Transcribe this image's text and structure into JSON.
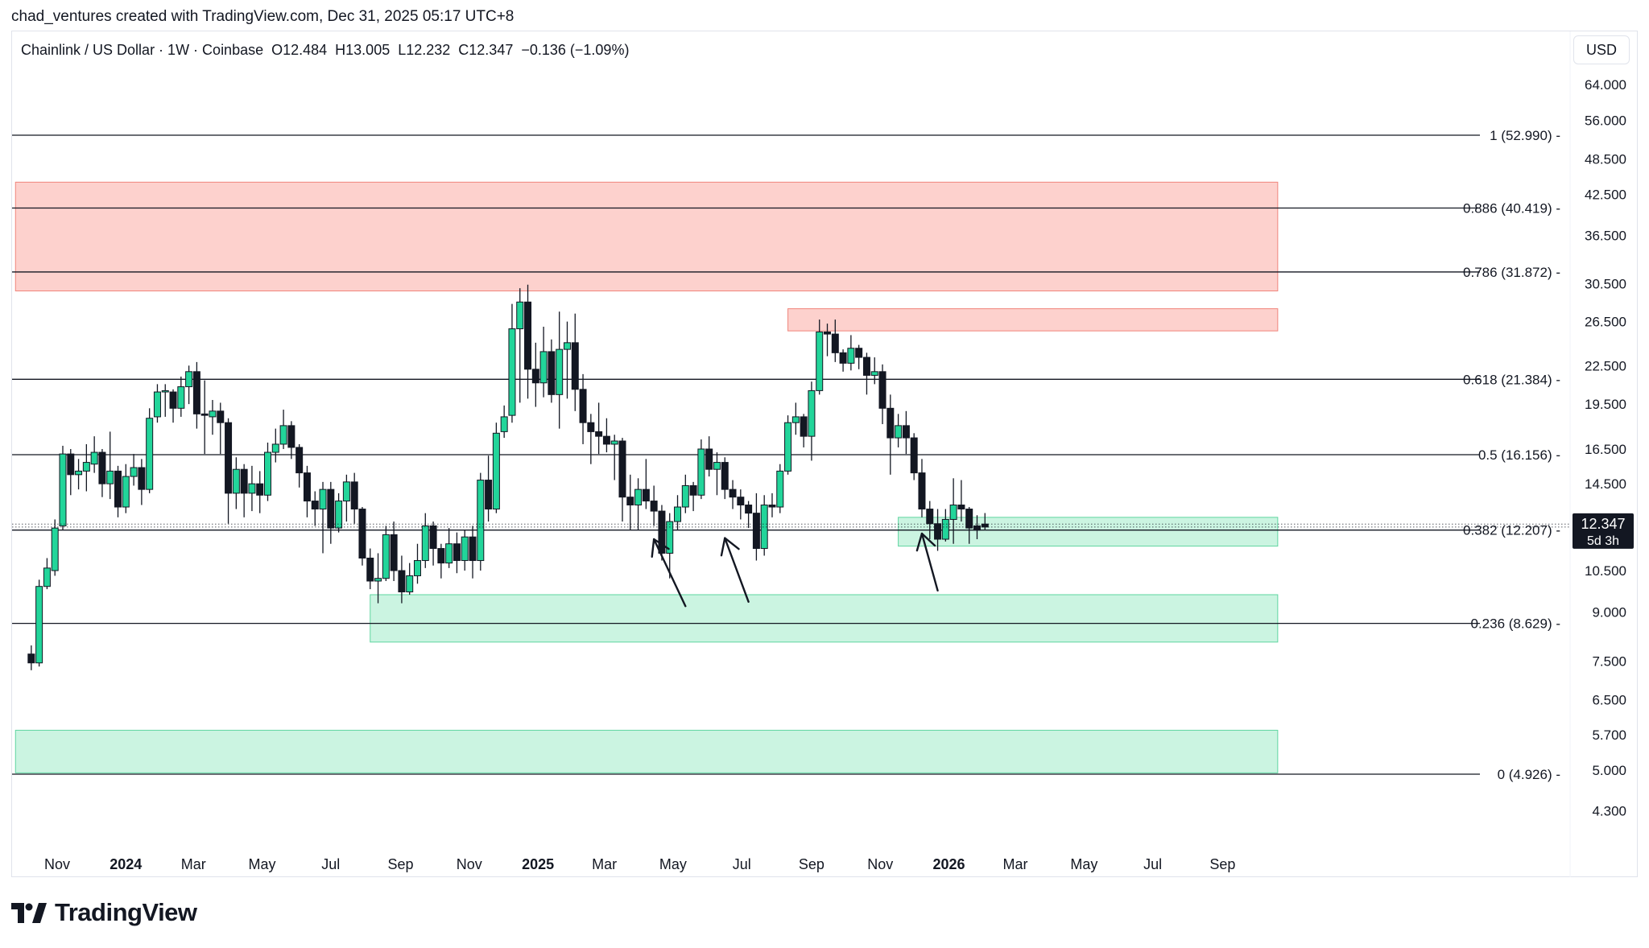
{
  "header": {
    "credit": "chad_ventures created with TradingView.com, Dec 31, 2025 05:17 UTC+8",
    "legend": "Chainlink / US Dollar · 1W · Coinbase  O12.484  H13.005  L12.232  C12.347  −0.136 (−1.09%)",
    "currency": "USD"
  },
  "brand": {
    "name": "TradingView"
  },
  "chart_data": {
    "type": "candlestick",
    "symbol": "Chainlink / US Dollar",
    "interval": "1W",
    "exchange": "Coinbase",
    "scale": "log",
    "ohlc_last": {
      "open": 12.484,
      "high": 13.005,
      "low": 12.232,
      "close": 12.347,
      "change": -0.136,
      "change_pct": -1.09
    },
    "last_price_label": "12.347",
    "countdown_label": "5d 3h",
    "y_ticks": [
      "64.000",
      "56.000",
      "48.500",
      "42.500",
      "36.500",
      "30.500",
      "26.500",
      "22.500",
      "19.500",
      "16.500",
      "14.500",
      "10.500",
      "9.000",
      "7.500",
      "6.500",
      "5.700",
      "5.000",
      "4.300"
    ],
    "x_ticks": [
      {
        "label": "Nov",
        "date": "2023-11-01",
        "bold": false
      },
      {
        "label": "2024",
        "date": "2024-01-01",
        "bold": true
      },
      {
        "label": "Mar",
        "date": "2024-03-01",
        "bold": false
      },
      {
        "label": "May",
        "date": "2024-05-01",
        "bold": false
      },
      {
        "label": "Jul",
        "date": "2024-07-01",
        "bold": false
      },
      {
        "label": "Sep",
        "date": "2024-09-01",
        "bold": false
      },
      {
        "label": "Nov",
        "date": "2024-11-01",
        "bold": false
      },
      {
        "label": "2025",
        "date": "2025-01-01",
        "bold": true
      },
      {
        "label": "Mar",
        "date": "2025-03-01",
        "bold": false
      },
      {
        "label": "May",
        "date": "2025-05-01",
        "bold": false
      },
      {
        "label": "Jul",
        "date": "2025-07-01",
        "bold": false
      },
      {
        "label": "Sep",
        "date": "2025-09-01",
        "bold": false
      },
      {
        "label": "Nov",
        "date": "2025-11-01",
        "bold": false
      },
      {
        "label": "2026",
        "date": "2026-01-01",
        "bold": true
      },
      {
        "label": "Mar",
        "date": "2026-03-01",
        "bold": false
      },
      {
        "label": "May",
        "date": "2026-05-01",
        "bold": false
      },
      {
        "label": "Jul",
        "date": "2026-07-01",
        "bold": false
      },
      {
        "label": "Sep",
        "date": "2026-09-01",
        "bold": false
      }
    ],
    "fib_levels": [
      {
        "ratio": "1",
        "value": 52.99,
        "label": "1 (52.990)"
      },
      {
        "ratio": "0.886",
        "value": 40.419,
        "label": "0.886 (40.419)"
      },
      {
        "ratio": "0.786",
        "value": 31.872,
        "label": "0.786 (31.872)"
      },
      {
        "ratio": "0.618",
        "value": 21.384,
        "label": "0.618 (21.384)"
      },
      {
        "ratio": "0.5",
        "value": 16.156,
        "label": "0.5 (16.156)"
      },
      {
        "ratio": "0.382",
        "value": 12.207,
        "label": "0.382 (12.207)"
      },
      {
        "ratio": "0.236",
        "value": 8.629,
        "label": "0.236 (8.629)"
      },
      {
        "ratio": "0",
        "value": 4.926,
        "label": "0 (4.926)"
      }
    ],
    "zones": [
      {
        "kind": "resistance",
        "from": "2023-09-25",
        "to": "2026-10-20",
        "low": 29.7,
        "high": 44.5
      },
      {
        "kind": "resistance",
        "from": "2025-08-11",
        "to": "2026-10-20",
        "low": 25.6,
        "high": 27.8
      },
      {
        "kind": "support",
        "from": "2025-11-17",
        "to": "2026-10-20",
        "low": 11.5,
        "high": 12.8
      },
      {
        "kind": "support",
        "from": "2024-08-05",
        "to": "2026-10-20",
        "low": 8.05,
        "high": 9.6
      },
      {
        "kind": "support",
        "from": "2023-09-25",
        "to": "2026-10-20",
        "low": 4.95,
        "high": 5.8
      }
    ],
    "arrows": [
      {
        "from": {
          "date": "2025-05-12",
          "price": 9.2
        },
        "to": {
          "date": "2025-04-14",
          "price": 11.8
        }
      },
      {
        "from": {
          "date": "2025-07-07",
          "price": 9.35
        },
        "to": {
          "date": "2025-06-16",
          "price": 11.85
        }
      },
      {
        "from": {
          "date": "2025-12-22",
          "price": 9.75
        },
        "to": {
          "date": "2025-12-08",
          "price": 12.05
        }
      }
    ],
    "candles_start": "2023-10-09",
    "candles": [
      [
        7.7,
        7.45,
        7.95,
        7.25
      ],
      [
        7.45,
        9.9,
        10.15,
        7.35
      ],
      [
        9.9,
        10.6,
        11.0,
        9.8
      ],
      [
        10.5,
        12.3,
        12.7,
        10.3
      ],
      [
        12.4,
        16.2,
        16.7,
        12.2
      ],
      [
        16.2,
        15.0,
        16.5,
        13.9
      ],
      [
        15.0,
        15.2,
        15.9,
        14.2
      ],
      [
        15.2,
        15.7,
        16.8,
        14.1
      ],
      [
        15.6,
        16.3,
        17.3,
        15.1
      ],
      [
        16.3,
        14.5,
        16.5,
        13.8
      ],
      [
        14.5,
        15.2,
        17.6,
        13.7
      ],
      [
        15.2,
        13.3,
        15.5,
        12.8
      ],
      [
        13.3,
        14.9,
        15.6,
        13.0
      ],
      [
        14.9,
        15.4,
        16.2,
        14.4
      ],
      [
        15.4,
        14.2,
        15.9,
        13.4
      ],
      [
        14.2,
        18.5,
        19.2,
        14.0
      ],
      [
        18.6,
        20.4,
        21.0,
        18.2
      ],
      [
        20.4,
        20.5,
        21.0,
        18.6
      ],
      [
        20.4,
        19.2,
        20.6,
        18.2
      ],
      [
        19.2,
        20.8,
        21.6,
        18.6
      ],
      [
        20.8,
        22.0,
        22.5,
        19.5
      ],
      [
        22.0,
        18.8,
        22.8,
        17.8
      ],
      [
        18.8,
        18.7,
        21.3,
        16.2
      ],
      [
        18.6,
        19.0,
        19.8,
        17.4
      ],
      [
        19.0,
        18.2,
        19.6,
        16.2
      ],
      [
        18.2,
        14.0,
        18.5,
        12.5
      ],
      [
        14.0,
        15.3,
        16.0,
        13.2
      ],
      [
        15.3,
        14.0,
        15.6,
        12.8
      ],
      [
        14.0,
        14.5,
        15.5,
        13.1
      ],
      [
        14.5,
        13.9,
        15.2,
        13.0
      ],
      [
        13.9,
        16.3,
        16.9,
        13.6
      ],
      [
        16.3,
        16.8,
        17.8,
        15.7
      ],
      [
        16.8,
        18.0,
        19.1,
        16.5
      ],
      [
        18.0,
        16.6,
        18.3,
        15.9
      ],
      [
        16.6,
        15.1,
        16.8,
        14.3
      ],
      [
        15.1,
        13.6,
        15.5,
        12.8
      ],
      [
        13.6,
        13.2,
        14.1,
        12.4
      ],
      [
        13.2,
        14.2,
        14.6,
        11.2
      ],
      [
        14.2,
        12.3,
        14.6,
        11.6
      ],
      [
        12.3,
        13.6,
        14.0,
        12.1
      ],
      [
        13.6,
        14.6,
        15.0,
        12.6
      ],
      [
        14.6,
        13.2,
        15.1,
        12.5
      ],
      [
        13.2,
        11.0,
        13.3,
        10.7
      ],
      [
        11.0,
        10.1,
        11.4,
        9.8
      ],
      [
        10.1,
        10.2,
        11.2,
        9.3
      ],
      [
        10.2,
        12.0,
        12.4,
        10.1
      ],
      [
        12.0,
        10.5,
        12.6,
        10.1
      ],
      [
        10.5,
        9.7,
        11.1,
        9.3
      ],
      [
        9.7,
        10.3,
        10.8,
        9.6
      ],
      [
        10.3,
        10.9,
        11.6,
        10.0
      ],
      [
        10.9,
        12.4,
        13.0,
        10.6
      ],
      [
        12.4,
        11.4,
        12.6,
        10.7
      ],
      [
        11.4,
        10.8,
        11.6,
        10.2
      ],
      [
        10.8,
        11.6,
        12.3,
        10.6
      ],
      [
        11.6,
        10.9,
        12.1,
        10.4
      ],
      [
        10.9,
        11.9,
        12.2,
        10.5
      ],
      [
        11.9,
        10.9,
        12.4,
        10.2
      ],
      [
        10.9,
        14.7,
        15.1,
        10.5
      ],
      [
        14.7,
        13.2,
        16.1,
        12.6
      ],
      [
        13.2,
        17.5,
        18.2,
        13.0
      ],
      [
        17.6,
        18.6,
        19.4,
        17.2
      ],
      [
        18.7,
        25.8,
        28.3,
        18.2
      ],
      [
        25.8,
        28.5,
        30.0,
        19.6
      ],
      [
        28.5,
        22.2,
        30.4,
        19.9
      ],
      [
        22.2,
        21.1,
        24.5,
        19.3
      ],
      [
        21.1,
        23.7,
        26.0,
        20.0
      ],
      [
        23.7,
        20.2,
        24.8,
        19.6
      ],
      [
        20.2,
        23.9,
        27.5,
        17.8
      ],
      [
        23.9,
        24.5,
        26.5,
        19.9
      ],
      [
        24.5,
        20.6,
        27.3,
        19.0
      ],
      [
        20.6,
        18.2,
        21.8,
        16.8
      ],
      [
        18.2,
        17.6,
        18.8,
        15.6
      ],
      [
        17.6,
        17.3,
        19.6,
        16.2
      ],
      [
        17.3,
        16.8,
        18.5,
        16.3
      ],
      [
        16.8,
        17.0,
        17.4,
        14.7
      ],
      [
        17.0,
        13.8,
        17.2,
        12.6
      ],
      [
        13.8,
        13.4,
        15.0,
        12.2
      ],
      [
        13.4,
        14.2,
        14.8,
        12.2
      ],
      [
        14.2,
        13.6,
        15.9,
        13.2
      ],
      [
        13.6,
        13.1,
        14.4,
        12.4
      ],
      [
        13.1,
        11.2,
        13.4,
        10.9
      ],
      [
        11.2,
        12.6,
        13.0,
        10.2
      ],
      [
        12.6,
        13.3,
        13.9,
        12.2
      ],
      [
        13.3,
        14.4,
        15.0,
        13.0
      ],
      [
        14.4,
        13.9,
        14.6,
        13.1
      ],
      [
        13.9,
        16.5,
        17.1,
        13.7
      ],
      [
        16.5,
        15.3,
        17.3,
        14.9
      ],
      [
        15.3,
        15.7,
        16.3,
        13.9
      ],
      [
        15.7,
        14.2,
        16.0,
        13.7
      ],
      [
        14.2,
        13.8,
        14.7,
        13.2
      ],
      [
        13.8,
        13.4,
        14.2,
        12.7
      ],
      [
        13.4,
        13.0,
        13.6,
        12.3
      ],
      [
        13.0,
        11.4,
        14.0,
        10.9
      ],
      [
        11.4,
        13.4,
        13.9,
        11.1
      ],
      [
        13.4,
        13.3,
        14.0,
        12.8
      ],
      [
        13.3,
        15.2,
        15.6,
        13.0
      ],
      [
        15.2,
        18.2,
        18.7,
        15.0
      ],
      [
        18.2,
        18.6,
        19.6,
        17.4
      ],
      [
        18.6,
        17.3,
        18.8,
        16.6
      ],
      [
        17.3,
        20.5,
        21.2,
        15.8
      ],
      [
        20.5,
        25.5,
        26.7,
        20.2
      ],
      [
        25.5,
        25.3,
        26.3,
        23.3
      ],
      [
        25.3,
        23.6,
        26.7,
        22.8
      ],
      [
        23.6,
        22.7,
        23.9,
        22.0
      ],
      [
        22.7,
        24.0,
        25.2,
        22.1
      ],
      [
        24.0,
        23.2,
        24.3,
        22.2
      ],
      [
        23.2,
        21.7,
        23.6,
        20.2
      ],
      [
        21.7,
        22.0,
        23.2,
        21.0
      ],
      [
        22.0,
        19.2,
        22.6,
        18.1
      ],
      [
        19.2,
        17.2,
        20.2,
        15.0
      ],
      [
        17.2,
        18.0,
        18.8,
        16.6
      ],
      [
        18.0,
        17.2,
        19.0,
        16.2
      ],
      [
        17.2,
        15.1,
        17.5,
        14.7
      ],
      [
        15.1,
        13.2,
        15.9,
        12.8
      ],
      [
        13.2,
        12.5,
        13.6,
        11.8
      ],
      [
        12.5,
        11.8,
        13.2,
        11.3
      ],
      [
        11.8,
        12.7,
        13.2,
        11.7
      ],
      [
        12.7,
        13.4,
        14.8,
        11.6
      ],
      [
        13.4,
        13.2,
        14.7,
        12.6
      ],
      [
        13.2,
        12.3,
        13.3,
        11.6
      ],
      [
        12.4,
        12.2,
        12.9,
        11.8
      ],
      [
        12.484,
        12.347,
        13.005,
        12.232
      ]
    ]
  }
}
